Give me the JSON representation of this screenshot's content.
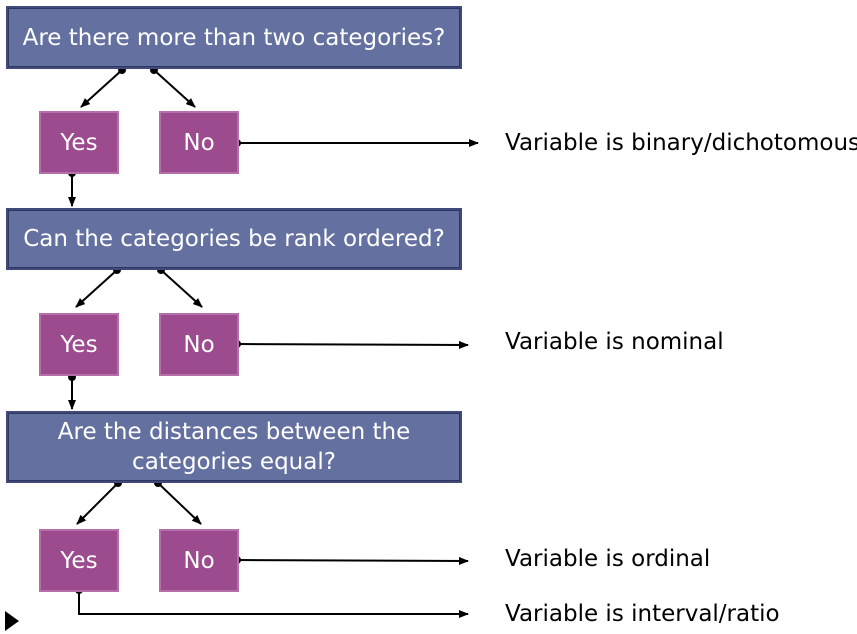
{
  "questions": [
    "Are there more than two categories?",
    "Can the categories be rank ordered?",
    "Are the distances between the\ncategories equal?"
  ],
  "answers": {
    "yes": "Yes",
    "no": "No"
  },
  "results": [
    "Variable is binary/dichotomous",
    "Variable is nominal",
    "Variable is ordinal",
    "Variable is interval/ratio"
  ],
  "colors": {
    "question_fill": "#6471a0",
    "answer_fill": "#9b4b8e",
    "text_light": "#ffffff"
  }
}
